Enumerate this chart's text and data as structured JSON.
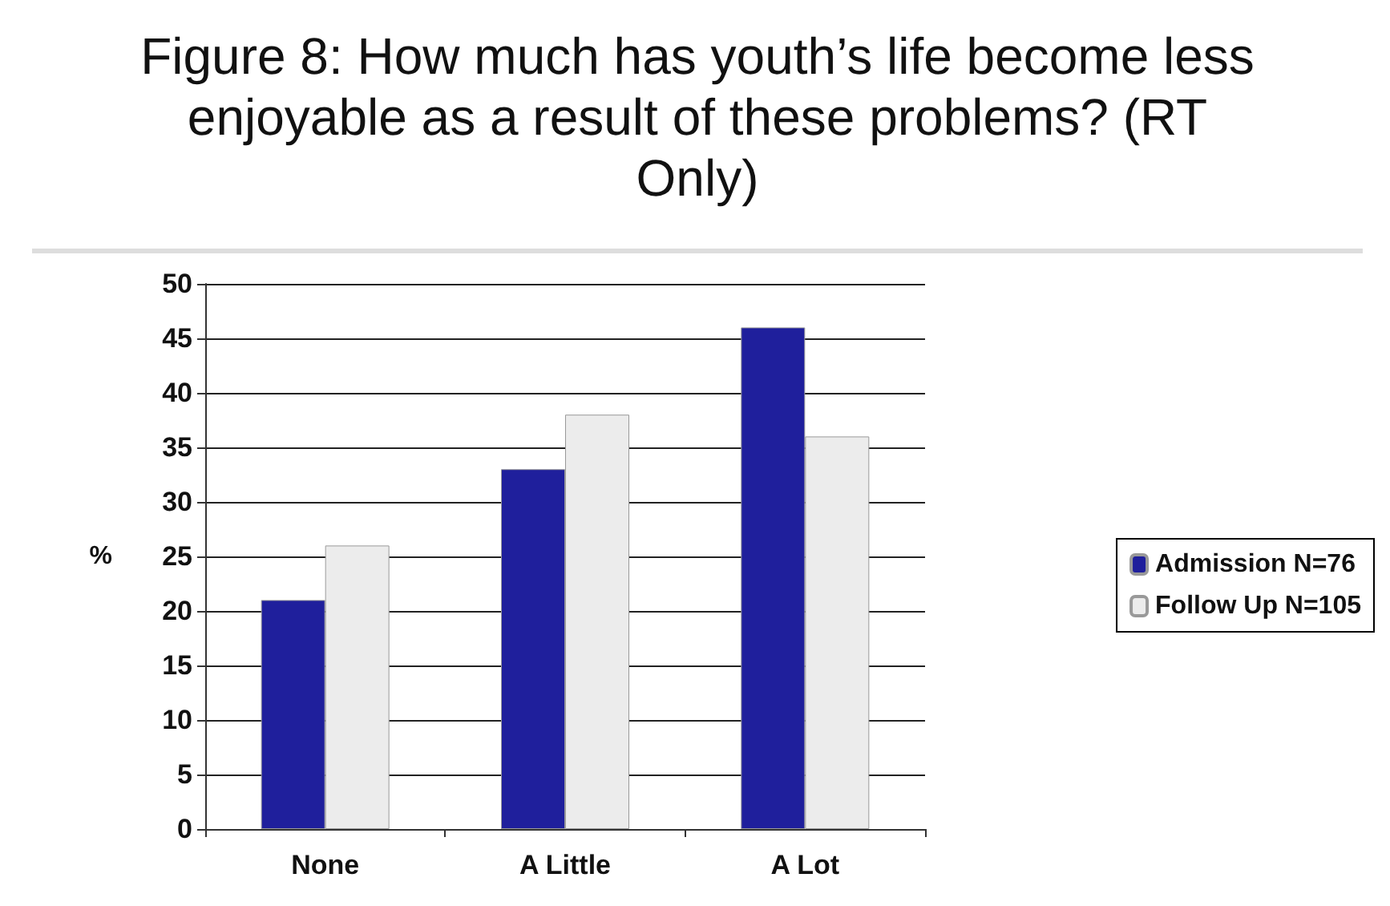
{
  "chart_data": {
    "type": "bar",
    "title": "Figure 8: How much has youth’s life become less enjoyable as a result of these problems? (RT Only)",
    "ylabel": "%",
    "categories": [
      "None",
      "A Little",
      "A Lot"
    ],
    "series": [
      {
        "name": "Admission N=76",
        "color": "#1f1f9c",
        "values": [
          21,
          33,
          46
        ]
      },
      {
        "name": "Follow Up N=105",
        "color": "#ececec",
        "values": [
          26,
          38,
          36
        ]
      }
    ],
    "ylim": [
      0,
      50
    ],
    "yticks": [
      0,
      5,
      10,
      15,
      20,
      25,
      30,
      35,
      40,
      45,
      50
    ],
    "grid": "y",
    "legend": "right"
  }
}
